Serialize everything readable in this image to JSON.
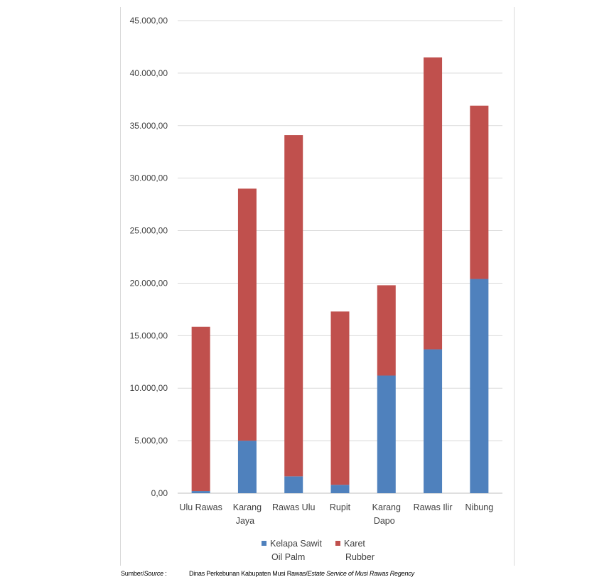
{
  "chart_data": {
    "type": "bar",
    "stacked": true,
    "categories": [
      [
        "Ulu Rawas"
      ],
      [
        "Karang",
        "Jaya"
      ],
      [
        "Rawas Ulu"
      ],
      [
        "Rupit"
      ],
      [
        "Karang",
        "Dapo"
      ],
      [
        "Rawas Ilir"
      ],
      [
        "Nibung"
      ]
    ],
    "series": [
      {
        "name": "Kelapa Sawit",
        "name_en": "Oil Palm",
        "color": "#4f81bd",
        "values": [
          200,
          5000,
          1600,
          800,
          11200,
          13700,
          20400
        ]
      },
      {
        "name": "Karet",
        "name_en": "Rubber",
        "color": "#c0504d",
        "values": [
          15650,
          24000,
          32500,
          16500,
          8600,
          27800,
          16500
        ]
      }
    ],
    "ylim": [
      0,
      45000
    ],
    "yticks": [
      "0,00",
      "5.000,00",
      "10.000,00",
      "15.000,00",
      "20.000,00",
      "25.000,00",
      "30.000,00",
      "35.000,00",
      "40.000,00",
      "45.000,00"
    ],
    "ytick_step": 5000,
    "grid": true,
    "legend_position": "bottom",
    "title": "",
    "xlabel": "",
    "ylabel": ""
  },
  "source": {
    "label_prefix": "Sumber/",
    "label_italic": "Source",
    "label_suffix": " :",
    "text": "Dinas Perkebunan Kabupaten Musi Rawas/",
    "text_italic": "Estate Service of Musi Rawas Regency"
  }
}
